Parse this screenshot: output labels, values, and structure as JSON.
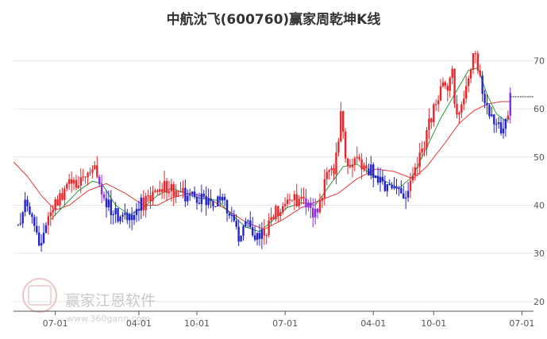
{
  "colors": {
    "up": "#e8262b",
    "down": "#2222cc",
    "neutral": "#8a2be2",
    "ma_short": "#2a9a3a",
    "ma_long": "#e83a3a",
    "grid": "#e6e6e6",
    "axis": "#555555",
    "last_price_line": "#333333"
  },
  "chart_data": {
    "type": "candlestick",
    "title": "中航沈飞(600760)赢家周乾坤K线",
    "y_axis": {
      "position": "right",
      "ticks": [
        20,
        30,
        40,
        50,
        60,
        70
      ],
      "range": [
        18,
        76
      ],
      "grid": true
    },
    "x_axis": {
      "ticks": [
        {
          "label": "07-01",
          "index": 16
        },
        {
          "label": "04-01",
          "index": 52
        },
        {
          "label": "10-01",
          "index": 77
        },
        {
          "label": "07-01",
          "index": 115
        },
        {
          "label": "04-01",
          "index": 153
        },
        {
          "label": "10-01",
          "index": 179
        },
        {
          "label": "07-01",
          "index": 217
        }
      ],
      "index_range": [
        -2,
        222
      ]
    },
    "last_price": 62.5,
    "keypoints": [
      [
        0,
        36,
        "down"
      ],
      [
        3,
        40,
        "down"
      ],
      [
        6,
        37,
        "down"
      ],
      [
        8,
        34,
        "down"
      ],
      [
        10,
        31,
        "down"
      ],
      [
        12,
        35,
        "down"
      ],
      [
        14,
        38,
        "up"
      ],
      [
        17,
        41,
        "up"
      ],
      [
        20,
        43,
        "up"
      ],
      [
        23,
        45,
        "up"
      ],
      [
        26,
        44,
        "up"
      ],
      [
        29,
        46,
        "up"
      ],
      [
        32,
        48,
        "up"
      ],
      [
        34,
        46,
        "up"
      ],
      [
        36,
        43,
        "neutral"
      ],
      [
        40,
        39,
        "down"
      ],
      [
        44,
        37,
        "down"
      ],
      [
        48,
        38,
        "down"
      ],
      [
        52,
        39.5,
        "down"
      ],
      [
        55,
        41,
        "up"
      ],
      [
        58,
        42,
        "up"
      ],
      [
        62,
        44,
        "up"
      ],
      [
        66,
        43.5,
        "up"
      ],
      [
        70,
        43,
        "up"
      ],
      [
        73,
        42,
        "down"
      ],
      [
        76,
        41.5,
        "down"
      ],
      [
        80,
        41,
        "down"
      ],
      [
        84,
        40.5,
        "down"
      ],
      [
        88,
        41,
        "down"
      ],
      [
        92,
        37,
        "down"
      ],
      [
        95,
        34,
        "down"
      ],
      [
        98,
        36,
        "down"
      ],
      [
        101,
        35,
        "down"
      ],
      [
        104,
        33,
        "down"
      ],
      [
        107,
        35,
        "up"
      ],
      [
        110,
        38,
        "up"
      ],
      [
        113,
        40,
        "up"
      ],
      [
        116,
        40,
        "up"
      ],
      [
        119,
        41,
        "up"
      ],
      [
        122,
        42,
        "up"
      ],
      [
        125,
        40,
        "neutral"
      ],
      [
        128,
        38,
        "neutral"
      ],
      [
        131,
        42,
        "up"
      ],
      [
        134,
        48,
        "up"
      ],
      [
        136,
        45,
        "up"
      ],
      [
        138,
        54,
        "up"
      ],
      [
        139,
        60,
        "up"
      ],
      [
        141,
        50,
        "up"
      ],
      [
        143,
        48,
        "up"
      ],
      [
        146,
        49,
        "up"
      ],
      [
        149,
        47,
        "up"
      ],
      [
        152,
        47,
        "down"
      ],
      [
        156,
        45,
        "down"
      ],
      [
        160,
        44,
        "down"
      ],
      [
        164,
        42,
        "down"
      ],
      [
        167,
        41,
        "down"
      ],
      [
        170,
        45,
        "up"
      ],
      [
        173,
        50,
        "up"
      ],
      [
        176,
        55,
        "up"
      ],
      [
        179,
        60,
        "up"
      ],
      [
        182,
        65,
        "up"
      ],
      [
        185,
        63,
        "up"
      ],
      [
        187,
        67,
        "up"
      ],
      [
        189,
        58,
        "up"
      ],
      [
        192,
        62,
        "up"
      ],
      [
        195,
        68,
        "up"
      ],
      [
        197,
        72,
        "up"
      ],
      [
        199,
        67,
        "up"
      ],
      [
        201,
        62,
        "down"
      ],
      [
        203,
        60,
        "down"
      ],
      [
        205,
        58,
        "down"
      ],
      [
        207,
        56,
        "down"
      ],
      [
        208,
        54,
        "down"
      ],
      [
        210,
        57,
        "down"
      ],
      [
        211,
        58,
        "up"
      ],
      [
        212,
        62.5,
        "neutral"
      ]
    ],
    "ma_short": {
      "name": "",
      "points": [
        [
          14,
          37
        ],
        [
          20,
          40
        ],
        [
          26,
          43
        ],
        [
          32,
          45
        ],
        [
          36,
          44.5
        ],
        [
          42,
          40
        ],
        [
          48,
          38
        ],
        [
          54,
          39.5
        ],
        [
          60,
          42
        ],
        [
          66,
          43.5
        ],
        [
          72,
          42.5
        ],
        [
          78,
          41.5
        ],
        [
          86,
          41
        ],
        [
          92,
          38
        ],
        [
          98,
          35.5
        ],
        [
          104,
          34.5
        ],
        [
          110,
          37
        ],
        [
          116,
          39.5
        ],
        [
          122,
          40.5
        ],
        [
          128,
          40
        ],
        [
          134,
          44
        ],
        [
          140,
          48
        ],
        [
          146,
          48.5
        ],
        [
          152,
          46.5
        ],
        [
          158,
          45
        ],
        [
          164,
          43.5
        ],
        [
          170,
          46
        ],
        [
          176,
          52
        ],
        [
          182,
          58
        ],
        [
          188,
          63
        ],
        [
          194,
          68
        ],
        [
          198,
          68.5
        ],
        [
          202,
          63
        ],
        [
          206,
          59
        ],
        [
          210,
          57.5
        ],
        [
          212,
          58
        ]
      ]
    },
    "ma_long": {
      "name": "",
      "points": [
        [
          -2,
          49
        ],
        [
          4,
          46
        ],
        [
          10,
          42
        ],
        [
          16,
          39
        ],
        [
          22,
          40
        ],
        [
          30,
          43
        ],
        [
          38,
          44.5
        ],
        [
          46,
          42.5
        ],
        [
          54,
          40
        ],
        [
          60,
          40
        ],
        [
          66,
          41.5
        ],
        [
          74,
          42.5
        ],
        [
          82,
          41.5
        ],
        [
          90,
          39
        ],
        [
          98,
          36.5
        ],
        [
          106,
          35
        ],
        [
          114,
          37
        ],
        [
          122,
          39.5
        ],
        [
          130,
          41
        ],
        [
          138,
          42.5
        ],
        [
          146,
          45.5
        ],
        [
          154,
          47.5
        ],
        [
          162,
          47
        ],
        [
          170,
          45.5
        ],
        [
          176,
          48
        ],
        [
          184,
          53
        ],
        [
          190,
          57
        ],
        [
          196,
          59.5
        ],
        [
          202,
          61
        ],
        [
          208,
          61.5
        ],
        [
          212,
          61.5
        ]
      ]
    }
  },
  "watermark": {
    "text": "赢家江恩软件",
    "url": "www.360gann.com"
  }
}
